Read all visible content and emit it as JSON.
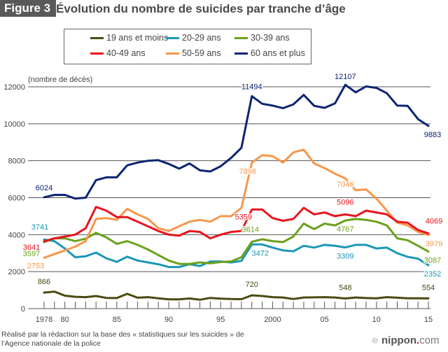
{
  "header": {
    "figure_label": "Figure 3",
    "title": "Évolution du nombre de suicides par tranche d’âge"
  },
  "chart_data": {
    "type": "line",
    "title": "Évolution du nombre de suicides par tranche d’âge",
    "ylabel": "(nombre de décès)",
    "xlabel": "",
    "ylim": [
      0,
      12000
    ],
    "yticks": [
      0,
      2000,
      4000,
      6000,
      8000,
      10000,
      12000
    ],
    "xlim": [
      1978,
      2015
    ],
    "xtick_labels": [
      {
        "year": 1978,
        "label": "1978"
      },
      {
        "year": 1980,
        "label": "80"
      },
      {
        "year": 1985,
        "label": "85"
      },
      {
        "year": 1990,
        "label": "90"
      },
      {
        "year": 1995,
        "label": "95"
      },
      {
        "year": 2000,
        "label": "2000"
      },
      {
        "year": 2005,
        "label": "05"
      },
      {
        "year": 2010,
        "label": "10"
      },
      {
        "year": 2015,
        "label": "15"
      }
    ],
    "grid": true,
    "legend_position": "top-center",
    "x": [
      1978,
      1979,
      1980,
      1981,
      1982,
      1983,
      1984,
      1985,
      1986,
      1987,
      1988,
      1989,
      1990,
      1991,
      1992,
      1993,
      1994,
      1995,
      1996,
      1997,
      1998,
      1999,
      2000,
      2001,
      2002,
      2003,
      2004,
      2005,
      2006,
      2007,
      2008,
      2009,
      2010,
      2011,
      2012,
      2013,
      2014,
      2015
    ],
    "series": [
      {
        "name": "19 ans et moins",
        "color": "#4b4a12",
        "values": [
          866,
          920,
          700,
          640,
          620,
          680,
          580,
          570,
          800,
          590,
          620,
          560,
          500,
          500,
          550,
          480,
          580,
          540,
          520,
          510,
          720,
          680,
          620,
          600,
          520,
          600,
          610,
          620,
          600,
          548,
          600,
          570,
          560,
          620,
          590,
          560,
          560,
          554
        ],
        "annotations": [
          {
            "year": 1978,
            "label": "866"
          },
          {
            "year": 1998,
            "label": "720"
          },
          {
            "year": 2007,
            "label": "548"
          },
          {
            "year": 2015,
            "label": "554"
          }
        ]
      },
      {
        "name": "20-29 ans",
        "color": "#1c97b8",
        "values": [
          3741,
          3650,
          3250,
          2780,
          2830,
          3030,
          2720,
          2530,
          2810,
          2600,
          2500,
          2400,
          2250,
          2250,
          2400,
          2300,
          2550,
          2550,
          2500,
          2580,
          3472,
          3472,
          3300,
          3150,
          3100,
          3400,
          3300,
          3450,
          3400,
          3309,
          3450,
          3450,
          3250,
          3300,
          3000,
          2800,
          2700,
          2352
        ],
        "annotations": [
          {
            "year": 1978,
            "label": "3741"
          },
          {
            "year": 1998,
            "label": "3472"
          },
          {
            "year": 2007,
            "label": "3309"
          },
          {
            "year": 2015,
            "label": "2352"
          }
        ]
      },
      {
        "name": "30-39 ans",
        "color": "#6ba11c",
        "values": [
          3597,
          3800,
          3800,
          3650,
          3780,
          4100,
          3850,
          3500,
          3650,
          3450,
          3200,
          2900,
          2600,
          2420,
          2420,
          2500,
          2450,
          2520,
          2550,
          2780,
          3614,
          3750,
          3650,
          3600,
          3900,
          4600,
          4300,
          4600,
          4500,
          4767,
          4850,
          4800,
          4700,
          4500,
          3800,
          3700,
          3400,
          3087
        ],
        "annotations": [
          {
            "year": 1978,
            "label": "3597"
          },
          {
            "year": 1998,
            "label": "3614"
          },
          {
            "year": 2007,
            "label": "4767"
          },
          {
            "year": 2015,
            "label": "3087"
          }
        ]
      },
      {
        "name": "40-49 ans",
        "color": "#e8141d",
        "values": [
          3641,
          3800,
          3900,
          4000,
          4350,
          5500,
          5300,
          4950,
          4950,
          4700,
          4450,
          4200,
          4000,
          3950,
          4200,
          4150,
          3800,
          4000,
          4150,
          4200,
          5359,
          5359,
          4900,
          4750,
          4850,
          5450,
          5100,
          5200,
          5000,
          5096,
          5000,
          5300,
          5200,
          5100,
          4700,
          4650,
          4250,
          4069
        ],
        "annotations": [
          {
            "year": 1978,
            "label": "3641"
          },
          {
            "year": 1998,
            "label": "5359"
          },
          {
            "year": 2007,
            "label": "5096"
          },
          {
            "year": 2015,
            "label": "4069"
          }
        ]
      },
      {
        "name": "50-59 ans",
        "color": "#f7974a",
        "values": [
          2753,
          2950,
          3150,
          3350,
          3650,
          4850,
          4900,
          4800,
          5400,
          5100,
          4850,
          4350,
          4200,
          4450,
          4700,
          4800,
          4700,
          5000,
          5000,
          5450,
          7898,
          8300,
          8250,
          7900,
          8450,
          8600,
          7850,
          7600,
          7300,
          7046,
          6400,
          6450,
          5950,
          5300,
          4650,
          4500,
          4150,
          3979
        ],
        "annotations": [
          {
            "year": 1978,
            "label": "2753"
          },
          {
            "year": 1998,
            "label": "7898"
          },
          {
            "year": 2007,
            "label": "7046"
          },
          {
            "year": 2015,
            "label": "3979"
          }
        ]
      },
      {
        "name": "60 ans et plus",
        "color": "#0d2473",
        "values": [
          6024,
          6150,
          6150,
          5950,
          6000,
          6950,
          7100,
          7100,
          7750,
          7900,
          8000,
          8030,
          7830,
          7570,
          7850,
          7480,
          7420,
          7700,
          8150,
          8700,
          11494,
          11080,
          10980,
          10840,
          11050,
          11560,
          10970,
          10860,
          11100,
          12107,
          11700,
          12020,
          11940,
          11650,
          10980,
          10970,
          10250,
          9883
        ],
        "annotations": [
          {
            "year": 1978,
            "label": "6024"
          },
          {
            "year": 1998,
            "label": "11494"
          },
          {
            "year": 2007,
            "label": "12107"
          },
          {
            "year": 2015,
            "label": "9883"
          }
        ]
      }
    ]
  },
  "footer": {
    "source_line1": "Réalisé par la rédaction sur la base des « statistiques sur les suicides » de",
    "source_line2": "l’Agence nationale de la police"
  },
  "logo": {
    "brand": "nippon",
    "dot": ".",
    "suffix": "com"
  }
}
